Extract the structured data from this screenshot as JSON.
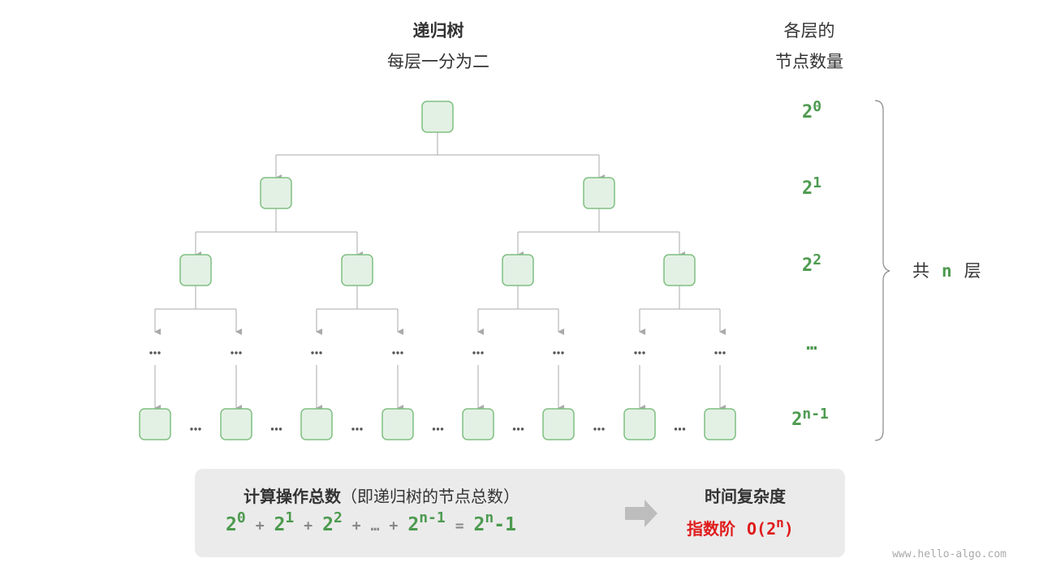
{
  "header": {
    "title": "递归树",
    "subtitle": "每层一分为二"
  },
  "column_header": {
    "line1": "各层的",
    "line2": "节点数量"
  },
  "levels": [
    {
      "base": "2",
      "exp": "0"
    },
    {
      "base": "2",
      "exp": "1"
    },
    {
      "base": "2",
      "exp": "2"
    },
    {
      "base": "…",
      "exp": ""
    },
    {
      "base": "2",
      "exp": "n-1"
    }
  ],
  "total_layers": {
    "prefix": "共",
    "n": "n",
    "suffix": "层"
  },
  "ellipsis": "…",
  "summary": {
    "title": "计算操作总数",
    "title_note": "（即递归树的节点总数）",
    "formula": {
      "t0": "2",
      "e0": "0",
      "p1": "+",
      "t1": "2",
      "e1": "1",
      "p2": "+",
      "t2": "2",
      "e2": "2",
      "p3": "+",
      "dots": "…",
      "p4": "+",
      "t3": "2",
      "e3": "n-1",
      "eq": "=",
      "r": "2",
      "re": "n",
      "rm": "-1"
    },
    "complexity_title": "时间复杂度",
    "complexity_label": "指数阶",
    "complexity_value_prefix": "O(2",
    "complexity_exp": "n",
    "complexity_value_suffix": ")"
  },
  "watermark": "www.hello-algo.com",
  "colors": {
    "node_fill": "#e3f1e4",
    "node_stroke": "#7fbf81",
    "accent_green": "#4d9a4f",
    "accent_red": "#e01b1b",
    "edge": "#aaaaaa"
  }
}
